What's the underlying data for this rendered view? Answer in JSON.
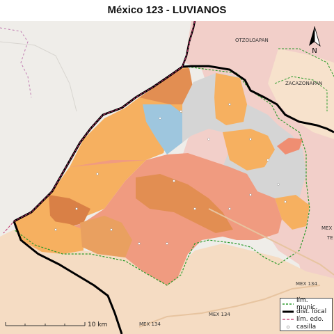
{
  "title": "México 123 - LUVIANOS",
  "places": {
    "otzoloapan": "OTZOLOAPAN",
    "zacazonapan": "ZACAZONAPAN",
    "mex_east": "MEX",
    "mex_east2": "TE",
    "mex134_right": "MEX 134",
    "mex134_mid": "MEX 134",
    "mex134_bottom": "MEX 134"
  },
  "north_arrow": {
    "label": "N"
  },
  "scale_bar": {
    "label": "10 km"
  },
  "legend": {
    "items": [
      {
        "label": "lím. munic."
      },
      {
        "label": "dist. local"
      },
      {
        "label": "lím. edo."
      },
      {
        "label": "casilla"
      }
    ]
  },
  "colors": {
    "orange_light": "#f6b060",
    "orange_dark": "#e28e52",
    "salmon": "#f09b80",
    "blue": "#9ec6de",
    "gray": "#d5d5d5",
    "pink_bg": "#f4d0cc",
    "beige_bg": "#f6dcc4",
    "district_border": "#000000",
    "municipal_border": "#2a9a2a",
    "state_border": "#c0306a"
  }
}
